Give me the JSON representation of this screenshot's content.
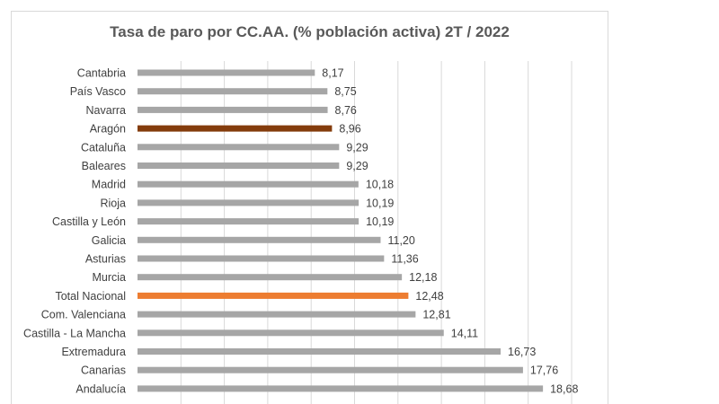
{
  "chart_data": {
    "type": "bar",
    "orientation": "horizontal",
    "title": "Tasa de paro por CC.AA. (% población activa) 2T / 2022",
    "xlabel": "",
    "ylabel": "",
    "xlim": [
      0,
      20
    ],
    "grid": true,
    "legend": "none",
    "categories": [
      "Cantabria",
      "País Vasco",
      "Navarra",
      "Aragón",
      "Cataluña",
      "Baleares",
      "Madrid",
      "Rioja",
      "Castilla y León",
      "Galicia",
      "Asturias",
      "Murcia",
      "Total Nacional",
      "Com. Valenciana",
      "Castilla - La Mancha",
      "Extremadura",
      "Canarias",
      "Andalucía"
    ],
    "values": [
      8.17,
      8.75,
      8.76,
      8.96,
      9.29,
      9.29,
      10.18,
      10.19,
      10.19,
      11.2,
      11.36,
      12.18,
      12.48,
      12.81,
      14.11,
      16.73,
      17.76,
      18.68
    ],
    "value_labels": [
      "8,17",
      "8,75",
      "8,76",
      "8,96",
      "9,29",
      "9,29",
      "10,18",
      "10,19",
      "10,19",
      "11,20",
      "11,36",
      "12,18",
      "12,48",
      "12,81",
      "14,11",
      "16,73",
      "17,76",
      "18,68"
    ],
    "highlights": {
      "Aragón": "#843c0c",
      "Total Nacional": "#ed7d31"
    },
    "default_color": "#a6a6a6"
  }
}
